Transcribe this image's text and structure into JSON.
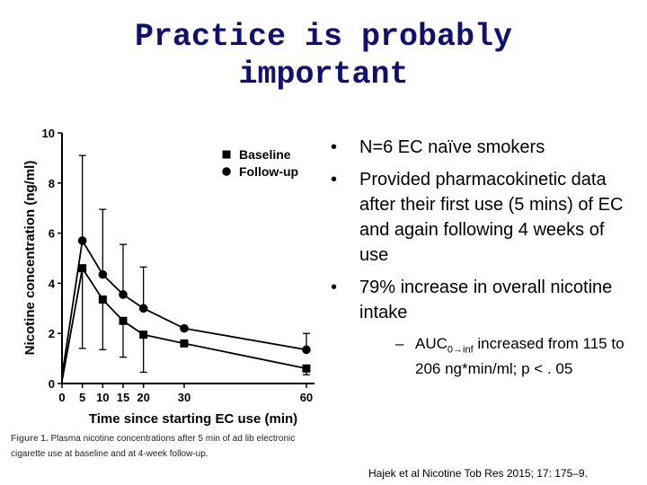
{
  "slide": {
    "title_line1": "Practice is probably",
    "title_line2": "important",
    "bullets": [
      "N=6 EC naïve smokers",
      "Provided pharmacokinetic data after their first use (5 mins) of EC and again following 4 weeks of use",
      "79% increase in overall nicotine intake"
    ],
    "sub_bullet": {
      "prefix": "AUC",
      "subscript": "0→inf",
      "rest": " increased from 115 to 206 ng*min/ml; p < . 05"
    },
    "citation": "Hajek et al Nicotine Tob Res 2015; 17: 175–9.",
    "bullet_symbol": "•",
    "dash_symbol": "–",
    "title_color": "#0f0f7a"
  },
  "caption": {
    "label": "Figure 1.",
    "text": " Plasma nicotine concentrations after 5 min of ad lib electronic cigarette use at baseline and at 4-week follow-up."
  },
  "chart_data": {
    "type": "line",
    "x": [
      0,
      5,
      10,
      15,
      20,
      30,
      60
    ],
    "series": [
      {
        "name": "Baseline",
        "marker": "square",
        "values": [
          0.1,
          4.6,
          3.35,
          2.5,
          1.95,
          1.6,
          0.6
        ],
        "err_upper": [
          null,
          null,
          null,
          null,
          null,
          null,
          null
        ]
      },
      {
        "name": "Follow-up",
        "marker": "circle",
        "values": [
          0.3,
          5.7,
          4.35,
          3.55,
          3.0,
          2.2,
          1.35
        ],
        "err_upper": [
          null,
          9.1,
          6.95,
          5.55,
          4.65,
          null,
          2.0
        ]
      }
    ],
    "error_bars_lower": [
      {
        "x": 5,
        "y": 1.4
      },
      {
        "x": 10,
        "y": 1.35
      },
      {
        "x": 15,
        "y": 1.05
      },
      {
        "x": 20,
        "y": 0.45
      },
      {
        "x": 60,
        "y": 0.35
      }
    ],
    "xlabel": "Time since starting EC use (min)",
    "ylabel": "Nicotine concentration (ng/ml)",
    "xticks": [
      0,
      5,
      10,
      15,
      20,
      30,
      60
    ],
    "yticks": [
      0,
      2,
      4,
      6,
      8,
      10
    ],
    "xlim": [
      0,
      62
    ],
    "ylim": [
      0,
      10
    ],
    "legend_placement": "top-right",
    "grid": false
  }
}
